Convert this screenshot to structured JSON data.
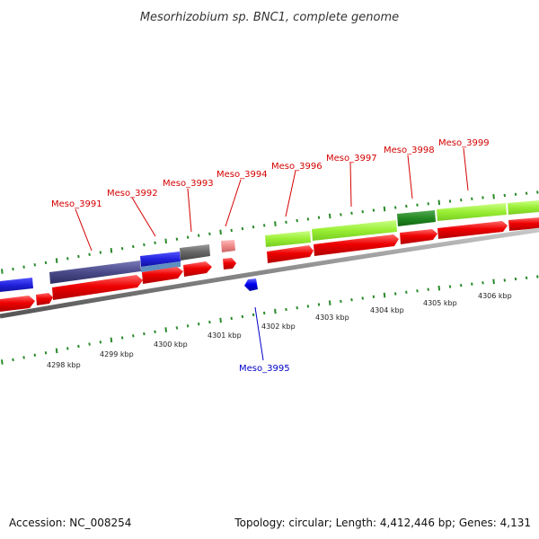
{
  "map": {
    "title": "Mesorhizobium sp. BNC1, complete genome",
    "accession": "Accession: NC_008254",
    "summary": "Topology: circular; Length: 4,412,446 bp; Genes: 4,131"
  },
  "scale": {
    "ticks": [
      {
        "label": "4298 kbp",
        "value": 4298
      },
      {
        "label": "4299 kbp",
        "value": 4299
      },
      {
        "label": "4300 kbp",
        "value": 4300
      },
      {
        "label": "4301 kbp",
        "value": 4301
      },
      {
        "label": "4302 kbp",
        "value": 4302
      },
      {
        "label": "4303 kbp",
        "value": 4303
      },
      {
        "label": "4304 kbp",
        "value": 4304
      },
      {
        "label": "4305 kbp",
        "value": 4305
      },
      {
        "label": "4306 kbp",
        "value": 4306
      }
    ]
  },
  "genes": [
    {
      "label": "Meso_3991",
      "color": "#d40000",
      "strand": "forward"
    },
    {
      "label": "Meso_3992",
      "color": "#d40000",
      "strand": "forward"
    },
    {
      "label": "Meso_3993",
      "color": "#d40000",
      "strand": "forward"
    },
    {
      "label": "Meso_3994",
      "color": "#d40000",
      "strand": "forward"
    },
    {
      "label": "Meso_3995",
      "color": "#0000c8",
      "strand": "reverse"
    },
    {
      "label": "Meso_3996",
      "color": "#d40000",
      "strand": "forward"
    },
    {
      "label": "Meso_3997",
      "color": "#d40000",
      "strand": "forward"
    },
    {
      "label": "Meso_3998",
      "color": "#d40000",
      "strand": "forward"
    },
    {
      "label": "Meso_3999",
      "color": "#d40000",
      "strand": "forward"
    }
  ],
  "colors": {
    "forward_cds": "#ee0000",
    "reverse_cds": "#0000ee",
    "backbone": "#888888",
    "tick": "#2a8a2a",
    "cog_purple": "#4a4a8a",
    "cog_blue": "#2222dd",
    "cog_gray": "#666666",
    "cog_pink": "#ee8888",
    "cog_lime": "#99ee33",
    "cog_darkgreen": "#228822"
  }
}
